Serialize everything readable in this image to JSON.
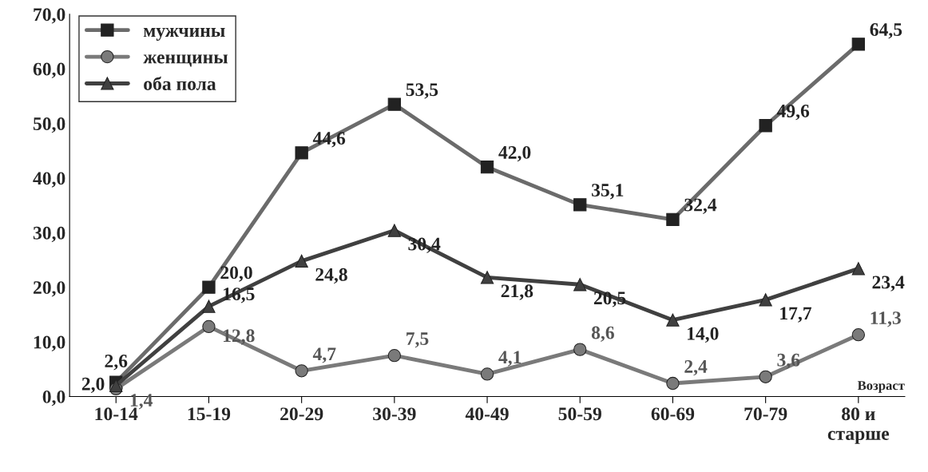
{
  "chart_data": {
    "type": "line",
    "categories": [
      "10-14",
      "15-19",
      "20-29",
      "30-39",
      "40-49",
      "50-59",
      "60-69",
      "70-79",
      "80 и\nстарше"
    ],
    "xlabel": "Возраст",
    "series": [
      {
        "name": "мужчины",
        "color": "#6b6b6b",
        "marker": "square",
        "values": [
          2.6,
          20.0,
          44.6,
          53.5,
          42.0,
          35.1,
          32.4,
          49.6,
          64.5
        ],
        "value_labels": [
          "2,6",
          "20,0",
          "44,6",
          "53,5",
          "42,0",
          "35,1",
          "32,4",
          "49,6",
          "64,5"
        ]
      },
      {
        "name": "женщины",
        "color": "#7a7a7a",
        "marker": "circle",
        "values": [
          1.4,
          12.8,
          4.7,
          7.5,
          4.1,
          8.6,
          2.4,
          3.6,
          11.3
        ],
        "value_labels": [
          "1,4",
          "12,8",
          "4,7",
          "7,5",
          "4,1",
          "8,6",
          "2,4",
          "3,6",
          "11,3"
        ]
      },
      {
        "name": "оба пола",
        "color": "#404040",
        "marker": "triangle",
        "values": [
          2.0,
          16.5,
          24.8,
          30.4,
          21.8,
          20.5,
          14.0,
          17.7,
          23.4
        ],
        "value_labels": [
          "2,0",
          "16,5",
          "24,8",
          "30,4",
          "21,8",
          "20,5",
          "14,0",
          "17,7",
          "23,4"
        ]
      }
    ],
    "ylim": [
      0,
      70
    ],
    "yticks": [
      {
        "value": 0,
        "label": "0,0"
      },
      {
        "value": 10,
        "label": "10,0"
      },
      {
        "value": 20,
        "label": "20,0"
      },
      {
        "value": 30,
        "label": "30,0"
      },
      {
        "value": 40,
        "label": "40,0"
      },
      {
        "value": 50,
        "label": "50,0"
      },
      {
        "value": 60,
        "label": "60,0"
      },
      {
        "value": 70,
        "label": "70,0"
      }
    ],
    "grid": false,
    "legend": "top left",
    "line_style": "solid"
  }
}
